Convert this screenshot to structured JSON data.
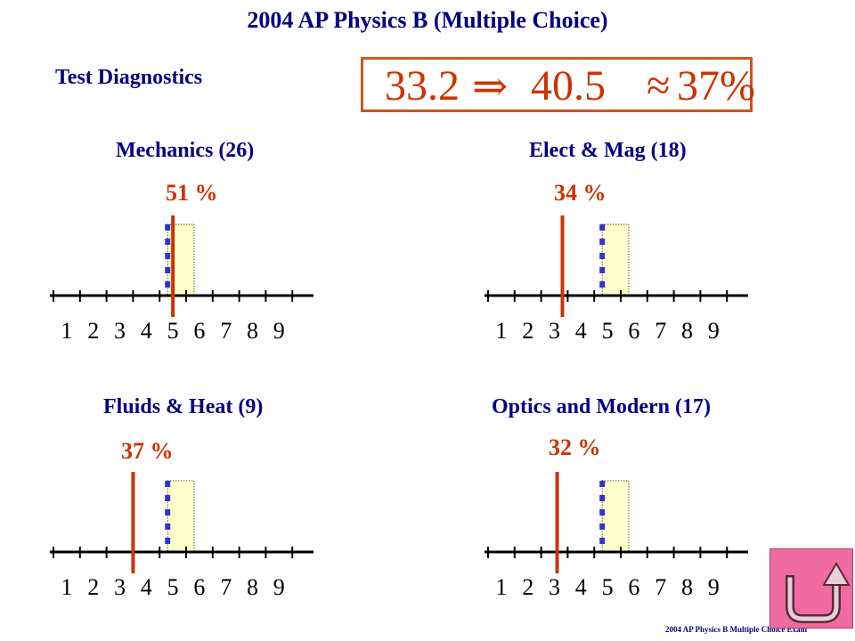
{
  "title": "2004 AP Physics B (Multiple Choice)",
  "diagnostics_label": "Test Diagnostics",
  "score_line": {
    "from": "33.2",
    "arrow": "⇒",
    "to": "40.5",
    "approx": "≈",
    "result": "37%"
  },
  "footer": "2004 AP Physics B Multiple Choice Exam",
  "colors": {
    "heading": "#000080",
    "accent": "#cc3300",
    "band_fill": "#ffffcc",
    "band_marker": "#3333cc",
    "button": "#f06ca0"
  },
  "chart_data": [
    {
      "type": "bar",
      "title": "Mechanics (26)",
      "annotation": "51 %",
      "categories": [
        "1",
        "2",
        "3",
        "4",
        "5",
        "6",
        "7",
        "8",
        "9"
      ],
      "highlight_range": [
        5,
        6
      ],
      "marker_position": 5.2
    },
    {
      "type": "bar",
      "title": "Elect & Mag (18)",
      "annotation": "34 %",
      "categories": [
        "1",
        "2",
        "3",
        "4",
        "5",
        "6",
        "7",
        "8",
        "9"
      ],
      "highlight_range": [
        5,
        6
      ],
      "marker_position": 3.5
    },
    {
      "type": "bar",
      "title": "Fluids & Heat (9)",
      "annotation": "37 %",
      "categories": [
        "1",
        "2",
        "3",
        "4",
        "5",
        "6",
        "7",
        "8",
        "9"
      ],
      "highlight_range": [
        5,
        6
      ],
      "marker_position": 3.7
    },
    {
      "type": "bar",
      "title": "Optics and Modern (17)",
      "annotation": "32 %",
      "categories": [
        "1",
        "2",
        "3",
        "4",
        "5",
        "6",
        "7",
        "8",
        "9"
      ],
      "highlight_range": [
        5,
        6
      ],
      "marker_position": 3.3
    }
  ]
}
